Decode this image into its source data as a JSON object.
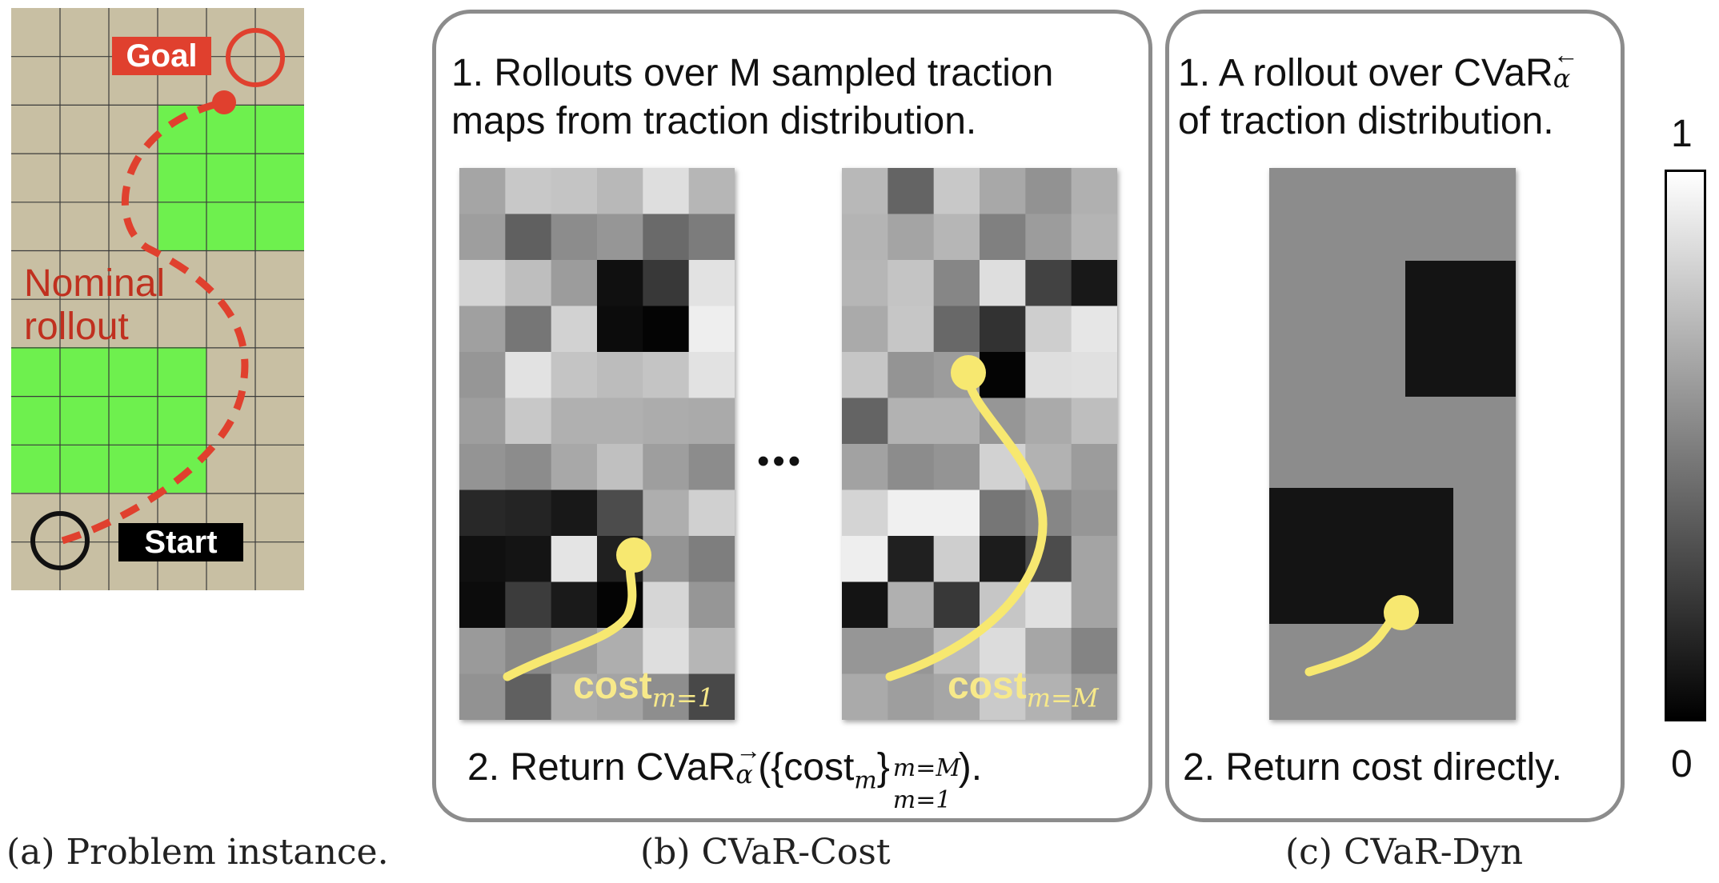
{
  "panel_a": {
    "goal_label": "Goal",
    "start_label": "Start",
    "rollout_label_line1": "Nominal",
    "rollout_label_line2": "rollout",
    "colors": {
      "ground": "#c8bfa3",
      "grass": "#6ef04e",
      "gridline": "#3b3b3b",
      "path": "#e0402e",
      "goal_circle": "#e0402e"
    },
    "caption": "(a) Problem instance."
  },
  "panel_b": {
    "step1_line1": "1. Rollouts over M sampled traction",
    "step1_line2": "maps from traction distribution.",
    "ellipsis": "•••",
    "cost_word": "cost",
    "cost_sub_left": "m=1",
    "cost_sub_right": "m=M",
    "step2_prefix": "2. Return CVaR",
    "step2_arrow": "→",
    "step2_alpha": "α",
    "step2_body": "({cost",
    "step2_m": "m",
    "step2_close": "}",
    "step2_sup": "m=M",
    "step2_sub": "m=1",
    "step2_end": ").",
    "path_color": "#f7e870",
    "caption": "(b) CVaR-Cost",
    "map_left_gray": [
      [
        165,
        200,
        196,
        184,
        222,
        182
      ],
      [
        158,
        96,
        140,
        150,
        106,
        124
      ],
      [
        212,
        190,
        156,
        16,
        56,
        226
      ],
      [
        160,
        118,
        210,
        12,
        4,
        238
      ],
      [
        150,
        226,
        196,
        188,
        196,
        226
      ],
      [
        158,
        200,
        176,
        176,
        172,
        170
      ],
      [
        148,
        140,
        168,
        192,
        158,
        140
      ],
      [
        40,
        36,
        24,
        76,
        174,
        208
      ],
      [
        16,
        20,
        228,
        32,
        148,
        126
      ],
      [
        12,
        60,
        26,
        4,
        214,
        150
      ],
      [
        154,
        136,
        154,
        174,
        222,
        182
      ],
      [
        146,
        96,
        170,
        164,
        142,
        72
      ]
    ],
    "map_right_gray": [
      [
        184,
        100,
        200,
        168,
        146,
        176
      ],
      [
        180,
        164,
        182,
        128,
        156,
        180
      ],
      [
        182,
        196,
        134,
        222,
        66,
        24
      ],
      [
        170,
        198,
        104,
        50,
        206,
        230
      ],
      [
        198,
        148,
        156,
        4,
        222,
        224
      ],
      [
        100,
        178,
        178,
        150,
        170,
        190
      ],
      [
        162,
        140,
        148,
        210,
        178,
        156
      ],
      [
        212,
        240,
        240,
        118,
        134,
        150
      ],
      [
        238,
        32,
        206,
        28,
        76,
        164
      ],
      [
        20,
        176,
        56,
        198,
        224,
        164
      ],
      [
        150,
        150,
        188,
        220,
        166,
        132
      ],
      [
        170,
        158,
        166,
        202,
        178,
        152
      ]
    ]
  },
  "panel_c": {
    "step1_prefix": "1. A rollout over CVaR",
    "step1_arrow": "←",
    "step1_alpha": "α",
    "step1_line2": "of traction distribution.",
    "step2": "2. Return cost directly.",
    "map_colors": {
      "base": "#8c8c8c",
      "dark": "#141414"
    },
    "caption": "(c) CVaR-Dyn"
  },
  "colorbar": {
    "max_label": "1",
    "min_label": "0"
  }
}
